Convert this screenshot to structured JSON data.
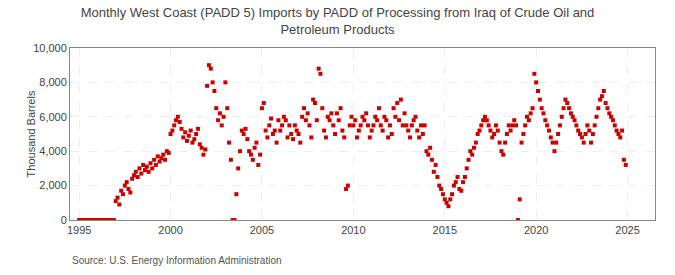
{
  "chart_data": {
    "type": "scatter",
    "title": "Monthly West Coast (PADD 5) Imports by PADD of Processing from Iraq of Crude Oil and\nPetroleum Products",
    "ylabel": "Thousand Barrels",
    "annotations": [
      "Source: U.S. Energy Information Administration"
    ],
    "xlim": [
      1994.5,
      2026.5
    ],
    "ylim": [
      0,
      10000
    ],
    "xticks": [
      1995,
      2000,
      2005,
      2010,
      2015,
      2020,
      2025
    ],
    "yticks": [
      0,
      {
        "value": 2000,
        "label": "2,000"
      },
      {
        "value": 4000,
        "label": "4,000"
      },
      {
        "value": 6000,
        "label": "6,000"
      },
      {
        "value": 8000,
        "label": "8,000"
      },
      {
        "value": 10000,
        "label": "10,000"
      }
    ],
    "grid": true,
    "color": "#cc0000",
    "marker": "square",
    "x": [
      1995.0,
      1995.1,
      1995.2,
      1995.3,
      1995.4,
      1995.5,
      1995.6,
      1995.7,
      1995.8,
      1995.9,
      1996.0,
      1996.1,
      1996.2,
      1996.3,
      1996.4,
      1996.5,
      1996.6,
      1996.7,
      1996.8,
      1996.9,
      1997.0,
      1997.1,
      1997.2,
      1997.3,
      1997.4,
      1997.5,
      1997.6,
      1997.7,
      1997.8,
      1997.9,
      1998.0,
      1998.1,
      1998.2,
      1998.3,
      1998.4,
      1998.5,
      1998.6,
      1998.7,
      1998.8,
      1998.9,
      1999.0,
      1999.1,
      1999.2,
      1999.3,
      1999.4,
      1999.5,
      1999.6,
      1999.7,
      1999.8,
      1999.9,
      2000.0,
      2000.1,
      2000.2,
      2000.3,
      2000.4,
      2000.5,
      2000.6,
      2000.7,
      2000.8,
      2000.9,
      2001.0,
      2001.1,
      2001.2,
      2001.3,
      2001.4,
      2001.5,
      2001.6,
      2001.7,
      2001.8,
      2001.9,
      2002.0,
      2002.1,
      2002.2,
      2002.3,
      2002.4,
      2002.5,
      2002.6,
      2002.7,
      2002.8,
      2002.9,
      2003.0,
      2003.1,
      2003.2,
      2003.3,
      2003.4,
      2003.5,
      2003.6,
      2003.7,
      2003.8,
      2003.9,
      2004.0,
      2004.1,
      2004.2,
      2004.3,
      2004.4,
      2004.5,
      2004.6,
      2004.7,
      2004.8,
      2004.9,
      2005.0,
      2005.1,
      2005.2,
      2005.3,
      2005.4,
      2005.5,
      2005.6,
      2005.7,
      2005.8,
      2005.9,
      2006.0,
      2006.1,
      2006.2,
      2006.3,
      2006.4,
      2006.5,
      2006.6,
      2006.7,
      2006.8,
      2006.9,
      2007.0,
      2007.1,
      2007.2,
      2007.3,
      2007.4,
      2007.5,
      2007.6,
      2007.7,
      2007.8,
      2007.9,
      2008.0,
      2008.1,
      2008.2,
      2008.3,
      2008.4,
      2008.5,
      2008.6,
      2008.7,
      2008.8,
      2008.9,
      2009.0,
      2009.1,
      2009.2,
      2009.3,
      2009.4,
      2009.5,
      2009.6,
      2009.7,
      2009.8,
      2009.9,
      2010.0,
      2010.1,
      2010.2,
      2010.3,
      2010.4,
      2010.5,
      2010.6,
      2010.7,
      2010.8,
      2010.9,
      2011.0,
      2011.1,
      2011.2,
      2011.3,
      2011.4,
      2011.5,
      2011.6,
      2011.7,
      2011.8,
      2011.9,
      2012.0,
      2012.1,
      2012.2,
      2012.3,
      2012.4,
      2012.5,
      2012.6,
      2012.7,
      2012.8,
      2012.9,
      2013.0,
      2013.1,
      2013.2,
      2013.3,
      2013.4,
      2013.5,
      2013.6,
      2013.7,
      2013.8,
      2013.9,
      2014.0,
      2014.1,
      2014.2,
      2014.3,
      2014.4,
      2014.5,
      2014.6,
      2014.7,
      2014.8,
      2014.9,
      2015.0,
      2015.1,
      2015.2,
      2015.3,
      2015.4,
      2015.5,
      2015.6,
      2015.7,
      2015.8,
      2015.9,
      2016.0,
      2016.1,
      2016.2,
      2016.3,
      2016.4,
      2016.5,
      2016.6,
      2016.7,
      2016.8,
      2016.9,
      2017.0,
      2017.1,
      2017.2,
      2017.3,
      2017.4,
      2017.5,
      2017.6,
      2017.7,
      2017.8,
      2017.9,
      2018.0,
      2018.1,
      2018.2,
      2018.3,
      2018.4,
      2018.5,
      2018.6,
      2018.7,
      2018.8,
      2018.9,
      2019.0,
      2019.1,
      2019.2,
      2019.3,
      2019.4,
      2019.5,
      2019.6,
      2019.7,
      2019.8,
      2019.9,
      2020.0,
      2020.1,
      2020.2,
      2020.3,
      2020.4,
      2020.5,
      2020.6,
      2020.7,
      2020.8,
      2020.9,
      2021.0,
      2021.1,
      2021.2,
      2021.3,
      2021.4,
      2021.5,
      2021.6,
      2021.7,
      2021.8,
      2021.9,
      2022.0,
      2022.1,
      2022.2,
      2022.3,
      2022.4,
      2022.5,
      2022.6,
      2022.7,
      2022.8,
      2022.9,
      2023.0,
      2023.1,
      2023.2,
      2023.3,
      2023.4,
      2023.5,
      2023.6,
      2023.7,
      2023.8,
      2023.9,
      2024.0,
      2024.1,
      2024.2,
      2024.3,
      2024.4,
      2024.5,
      2024.6,
      2024.7,
      2024.8,
      2024.9
    ],
    "values": [
      0,
      0,
      0,
      0,
      0,
      0,
      0,
      0,
      0,
      0,
      0,
      0,
      0,
      0,
      0,
      0,
      0,
      0,
      0,
      0,
      1100,
      1300,
      900,
      1700,
      1500,
      2000,
      2200,
      1800,
      1600,
      2400,
      2600,
      2800,
      2500,
      3000,
      2700,
      3200,
      2900,
      3100,
      2800,
      3300,
      3000,
      3500,
      3200,
      3700,
      3400,
      3600,
      3800,
      3500,
      4000,
      3900,
      5000,
      5200,
      5500,
      5800,
      6000,
      5700,
      5300,
      4800,
      5100,
      4600,
      4900,
      5200,
      4500,
      4700,
      5000,
      5300,
      4400,
      4200,
      3800,
      4100,
      7800,
      9000,
      8800,
      8000,
      7500,
      6500,
      5800,
      6200,
      5500,
      6000,
      8000,
      6500,
      4500,
      3500,
      0,
      0,
      1500,
      3000,
      4000,
      5200,
      5000,
      5300,
      4700,
      4000,
      3800,
      3500,
      4200,
      4500,
      3200,
      3800,
      6500,
      6800,
      5200,
      4800,
      5500,
      5900,
      5000,
      5200,
      4500,
      5800,
      5200,
      5500,
      6000,
      5800,
      4800,
      5500,
      5000,
      4700,
      5500,
      5200,
      5000,
      4500,
      6000,
      6500,
      5800,
      6200,
      5500,
      4800,
      7000,
      6800,
      5800,
      8800,
      8500,
      6500,
      5200,
      4800,
      6000,
      5800,
      6200,
      5500,
      5000,
      6200,
      5800,
      6500,
      5200,
      4800,
      1800,
      2000,
      5500,
      6000,
      5500,
      5800,
      4800,
      5200,
      5500,
      6000,
      5800,
      6200,
      5500,
      4800,
      5200,
      5500,
      6000,
      5800,
      6500,
      5500,
      5200,
      6000,
      5800,
      4800,
      5500,
      5000,
      6500,
      6000,
      6800,
      5800,
      7000,
      5500,
      6200,
      5500,
      5200,
      4800,
      5500,
      5800,
      6000,
      5200,
      4800,
      5500,
      5000,
      5500,
      4000,
      3800,
      4200,
      3500,
      2800,
      3200,
      2500,
      2000,
      1800,
      1500,
      1200,
      1000,
      800,
      1200,
      1500,
      2000,
      2200,
      2500,
      1800,
      1700,
      2200,
      2500,
      3000,
      3500,
      4000,
      3800,
      4200,
      4500,
      5000,
      5200,
      5500,
      5800,
      6000,
      5800,
      5500,
      5200,
      4800,
      5000,
      5500,
      5200,
      4500,
      4000,
      3800,
      4500,
      5000,
      5500,
      5200,
      5500,
      5800,
      5500,
      0,
      1200,
      4500,
      5000,
      5500,
      6000,
      5800,
      6200,
      6500,
      8500,
      8000,
      7500,
      7000,
      6500,
      6200,
      5800,
      5500,
      5200,
      4800,
      4500,
      4000,
      4500,
      5000,
      5500,
      6000,
      6500,
      7000,
      6800,
      6500,
      6200,
      6000,
      5800,
      5500,
      5200,
      5000,
      4800,
      4500,
      5000,
      5500,
      5200,
      4500,
      5000,
      5500,
      6000,
      6500,
      7000,
      7200,
      7500,
      6800,
      6500,
      6200,
      6000,
      5800,
      5500,
      5200,
      5000,
      4800,
      5200,
      3500,
      3200
    ]
  }
}
